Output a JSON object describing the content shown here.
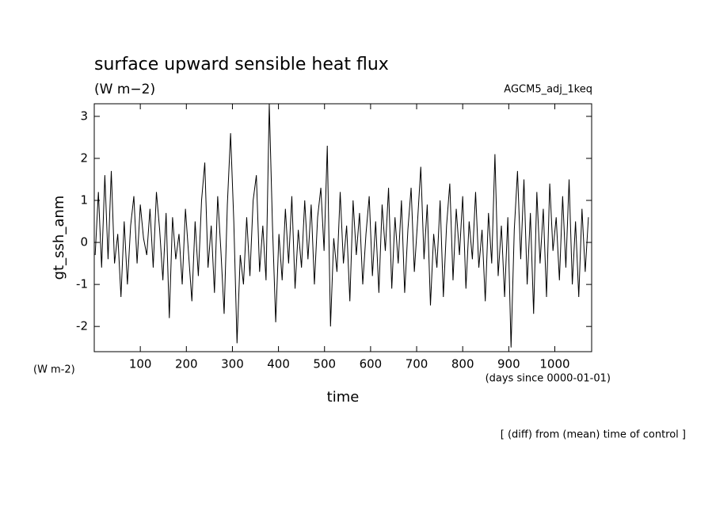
{
  "chart_data": {
    "type": "line",
    "title": "surface upward sensible heat flux",
    "subtitle": "(W m−2)",
    "run_name": "AGCM5_adj_1keq",
    "y_label": "gt_ssh_anm",
    "y_unit": "(W m-2)",
    "x_label": "time",
    "x_unit": "(days since 0000-01-01)",
    "footnote": "[ (diff) from (mean) time of control ]",
    "color": "#000000",
    "xlim": [
      0,
      1080
    ],
    "ylim": [
      -2.6,
      3.3
    ],
    "xticks": [
      100,
      200,
      300,
      400,
      500,
      600,
      700,
      800,
      900,
      1000
    ],
    "yticks": [
      -2,
      -1,
      0,
      1,
      2,
      3
    ],
    "x": [
      2,
      9,
      16,
      23,
      30,
      37,
      44,
      51,
      58,
      65,
      72,
      79,
      86,
      93,
      100,
      107,
      114,
      121,
      128,
      135,
      142,
      149,
      156,
      163,
      170,
      177,
      184,
      191,
      198,
      205,
      212,
      219,
      226,
      233,
      240,
      247,
      254,
      261,
      268,
      275,
      282,
      289,
      296,
      303,
      310,
      317,
      324,
      331,
      338,
      345,
      352,
      359,
      366,
      373,
      380,
      387,
      394,
      401,
      408,
      415,
      422,
      429,
      436,
      443,
      450,
      457,
      464,
      471,
      478,
      485,
      492,
      499,
      506,
      513,
      520,
      527,
      534,
      541,
      548,
      555,
      562,
      569,
      576,
      583,
      590,
      597,
      604,
      611,
      618,
      625,
      632,
      639,
      646,
      653,
      660,
      667,
      674,
      681,
      688,
      695,
      702,
      709,
      716,
      723,
      730,
      737,
      744,
      751,
      758,
      765,
      772,
      779,
      786,
      793,
      800,
      807,
      814,
      821,
      828,
      835,
      842,
      849,
      856,
      863,
      870,
      877,
      884,
      891,
      898,
      905,
      912,
      919,
      926,
      933,
      940,
      947,
      954,
      961,
      968,
      975,
      982,
      989,
      996,
      1003,
      1010,
      1017,
      1024,
      1031,
      1038,
      1045,
      1052,
      1059,
      1066,
      1073
    ],
    "values": [
      -0.3,
      1.2,
      -0.6,
      1.6,
      -0.4,
      1.7,
      -0.5,
      0.2,
      -1.3,
      0.5,
      -1.0,
      0.4,
      1.1,
      -0.5,
      0.9,
      0.1,
      -0.3,
      0.8,
      -0.6,
      1.2,
      0.3,
      -0.9,
      0.7,
      -1.8,
      0.6,
      -0.4,
      0.2,
      -1.0,
      0.8,
      -0.3,
      -1.4,
      0.5,
      -0.8,
      1.0,
      1.9,
      -0.6,
      0.4,
      -1.2,
      1.1,
      -0.2,
      -1.7,
      0.9,
      2.6,
      0.5,
      -2.4,
      -0.3,
      -1.0,
      0.6,
      -0.8,
      1.0,
      1.6,
      -0.7,
      0.4,
      -0.9,
      3.3,
      0.4,
      -1.9,
      0.2,
      -0.9,
      0.8,
      -0.5,
      1.1,
      -1.1,
      0.3,
      -0.6,
      1.0,
      -0.4,
      0.9,
      -1.0,
      0.6,
      1.3,
      -0.2,
      2.3,
      -2.0,
      0.1,
      -0.7,
      1.2,
      -0.5,
      0.4,
      -1.4,
      1.0,
      -0.3,
      0.7,
      -1.0,
      0.2,
      1.1,
      -0.8,
      0.5,
      -1.2,
      0.9,
      -0.2,
      1.3,
      -1.1,
      0.6,
      -0.5,
      1.0,
      -1.2,
      0.3,
      1.3,
      -0.7,
      0.5,
      1.8,
      -0.4,
      0.9,
      -1.5,
      0.2,
      -0.6,
      1.0,
      -1.3,
      0.4,
      1.4,
      -0.9,
      0.8,
      -0.3,
      1.1,
      -1.1,
      0.5,
      -0.4,
      1.2,
      -0.6,
      0.3,
      -1.4,
      0.7,
      -0.5,
      2.1,
      -0.8,
      0.4,
      -1.3,
      0.6,
      -2.5,
      0.3,
      1.7,
      -0.4,
      1.5,
      -1.0,
      0.7,
      -1.7,
      1.2,
      -0.5,
      0.8,
      -1.3,
      1.4,
      -0.2,
      0.6,
      -0.9,
      1.1,
      -0.6,
      1.5,
      -1.0,
      0.5,
      -1.3,
      0.8,
      -0.7,
      0.6
    ]
  }
}
